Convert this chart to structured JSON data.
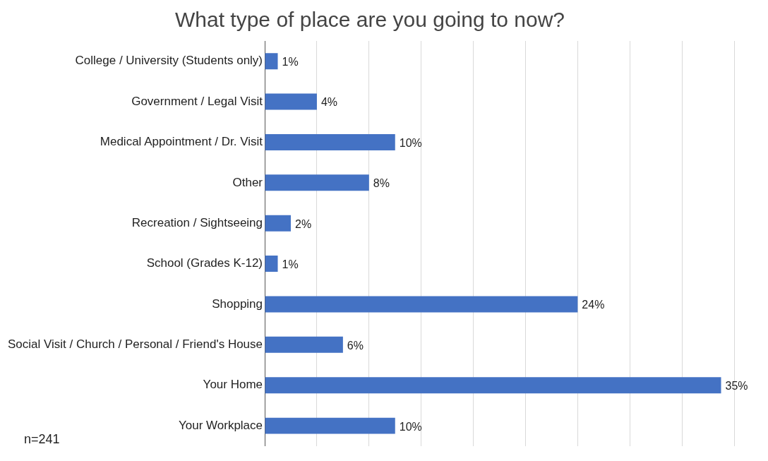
{
  "chart_data": {
    "type": "bar",
    "orientation": "horizontal",
    "title": "What type of place are you going to now?",
    "categories": [
      "College / University (Students only)",
      "Government / Legal Visit",
      "Medical Appointment / Dr. Visit",
      "Other",
      "Recreation / Sightseeing",
      "School (Grades K-12)",
      "Shopping",
      "Social Visit / Church / Personal / Friend's House",
      "Your Home",
      "Your Workplace"
    ],
    "values": [
      1,
      4,
      10,
      8,
      2,
      1,
      24,
      6,
      35,
      10
    ],
    "value_labels": [
      "1%",
      "4%",
      "10%",
      "8%",
      "2%",
      "1%",
      "24%",
      "6%",
      "35%",
      "10%"
    ],
    "color": "#4472c4",
    "xlim": [
      0,
      36
    ],
    "xticks": [
      {
        "value": 0,
        "label": null
      },
      {
        "value": 4,
        "label": null
      },
      {
        "value": 8,
        "label": null
      },
      {
        "value": 12,
        "label": null
      },
      {
        "value": 16,
        "label": null
      },
      {
        "value": 20,
        "label": null
      },
      {
        "value": 24,
        "label": null
      },
      {
        "value": 28,
        "label": null
      },
      {
        "value": 32,
        "label": null
      },
      {
        "value": 36,
        "label": null
      }
    ],
    "tick_labels": "y",
    "grid": "x",
    "legend": false,
    "annotations": [
      "n=241"
    ]
  }
}
